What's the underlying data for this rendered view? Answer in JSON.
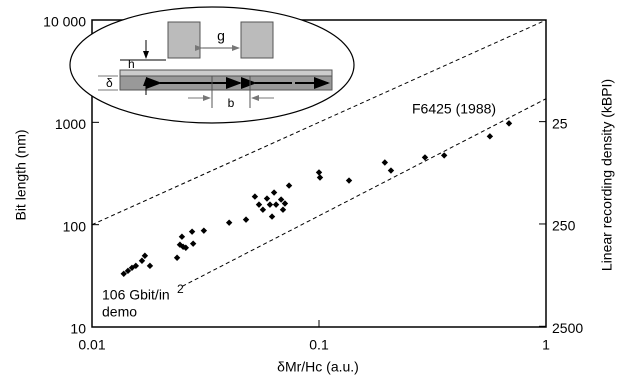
{
  "chart_data": {
    "type": "scatter",
    "xlabel": "δMr/Hc (a.u.)",
    "ylabel": "Bit length (nm)",
    "y2label": "Linear recording density (kBPI)",
    "xscale": "log",
    "yscale": "log",
    "y2scale": "log",
    "xlim": [
      0.01,
      1
    ],
    "ylim": [
      10,
      10000
    ],
    "y2lim": [
      2540,
      2.54
    ],
    "xticks": [
      0.01,
      0.1,
      1
    ],
    "yticks": [
      10,
      100,
      1000,
      {
        "value": 10000,
        "label": "10 000"
      }
    ],
    "y2ticks": [
      25,
      250,
      2500
    ],
    "color": "#000000",
    "x": [
      0.0138,
      0.0144,
      0.015,
      0.0156,
      0.0166,
      0.0171,
      0.018,
      0.0237,
      0.0244,
      0.0249,
      0.0252,
      0.0259,
      0.0276,
      0.0279,
      0.0311,
      0.0402,
      0.0477,
      0.0522,
      0.0544,
      0.0566,
      0.059,
      0.0608,
      0.0621,
      0.0634,
      0.0647,
      0.0681,
      0.0694,
      0.0708,
      0.0738,
      0.1,
      0.101,
      0.1356,
      0.195,
      0.2075,
      0.293,
      0.356,
      0.566,
      0.687
    ],
    "values": [
      33.1,
      35.4,
      37.9,
      39.6,
      44.4,
      49.7,
      39.6,
      47.5,
      63.7,
      76.3,
      60.8,
      59.5,
      85.4,
      65.2,
      87.4,
      104.6,
      112,
      188,
      157,
      140,
      180,
      157,
      120,
      206,
      157,
      176,
      140,
      161,
      241,
      324,
      289,
      270,
      405,
      338,
      454,
      475,
      730,
      977
    ],
    "lines": [
      {
        "x": [
          0.01,
          1
        ],
        "y": [
          100,
          10000
        ]
      },
      {
        "x": [
          0.025,
          1
        ],
        "y": [
          25,
          1700
        ]
      }
    ],
    "annotations": [
      "F6425 (1988)",
      "106 Gbit/in",
      "2",
      "demo"
    ],
    "inset": {
      "labels": [
        "g",
        "h",
        "δ",
        "b"
      ]
    }
  }
}
